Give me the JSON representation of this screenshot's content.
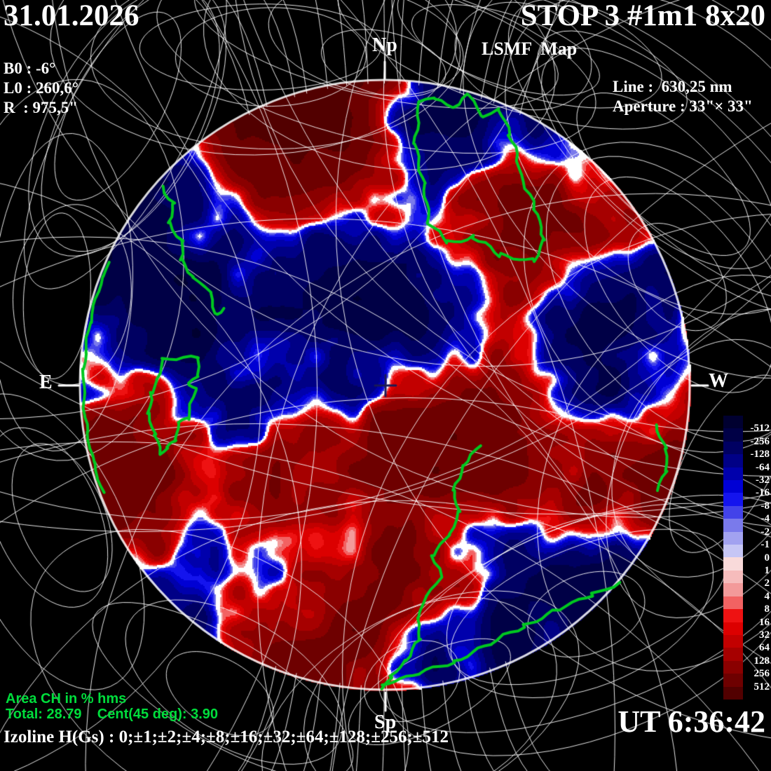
{
  "header": {
    "date": "31.01.2026",
    "instrument": "STOP 3 #1m1 8x20",
    "map_type": "LSMF  Map"
  },
  "observation": {
    "b0": "B0 : -6°",
    "l0": "L0 : 260,6°",
    "r": "R  : 975,5\"",
    "line": "Line :  630,25 nm",
    "aperture": "Aperture : 33\"× 33\""
  },
  "orientation": {
    "north": "Np",
    "south": "Sp",
    "east": "E",
    "west": "W"
  },
  "footer": {
    "area_ch_title": "Area CH in % hms",
    "area_ch_values": "Total: 28.79    Cent(45 deg): 3.90",
    "izoline_label": "Izoline H(Gs) : 0;±1;±2;±4;±8;±16;±32;±64;±128;±256;±512",
    "time": "UT 6:36:42"
  },
  "colorbar": {
    "levels": [
      "-512",
      "-256",
      "-128",
      "-64",
      "-32",
      "-16",
      "-8",
      "-4",
      "-2",
      "-1",
      "0",
      "1",
      "2",
      "4",
      "8",
      "16",
      "32",
      "64",
      "128",
      "256",
      "512"
    ],
    "palette": [
      "#000030",
      "#000046",
      "#000062",
      "#000086",
      "#0000ac",
      "#0000d4",
      "#1414ee",
      "#4343e9",
      "#7a7aeb",
      "#a2a2f0",
      "#c6c6f5",
      "#f9dada",
      "#f6bcbc",
      "#f39a9a",
      "#f26262",
      "#ee1212",
      "#dc0000",
      "#c20000",
      "#a60000",
      "#8a0000",
      "#6e0000",
      "#520000"
    ]
  },
  "colors": {
    "background": "#000000",
    "text": "#ffffff",
    "field_lines": "#ffffff",
    "ch_contour": "#00c820",
    "area_text": "#00dd3c",
    "center_cross": "#1a1a55",
    "limb": "#ffffff"
  },
  "chart_data": {
    "type": "heatmap",
    "title": "LSMF Map (large-scale solar magnetic field, STOP 3)",
    "quantity": "H (Gs)",
    "date": "31.01.2026",
    "time_ut": "6:36:42",
    "b0_deg": -6,
    "l0_deg": 260.6,
    "r_arcsec": 975.5,
    "line_nm": 630.25,
    "aperture": "33\"×33\"",
    "colorbar_levels_gs": [
      -512,
      -256,
      -128,
      -64,
      -32,
      -16,
      -8,
      -4,
      -2,
      -1,
      0,
      1,
      2,
      4,
      8,
      16,
      32,
      64,
      128,
      256,
      512
    ],
    "isoline_levels_gs": "0;±1;±2;±4;±8;±16;±32;±64;±128;±256;±512",
    "coronal_hole_area": {
      "total_percent_hms": 28.79,
      "central_45deg_percent": 3.9
    },
    "legend_position": "right",
    "positive_color_meaning": "red = positive polarity (H > 0)",
    "negative_color_meaning": "blue = negative polarity (H < 0)"
  }
}
